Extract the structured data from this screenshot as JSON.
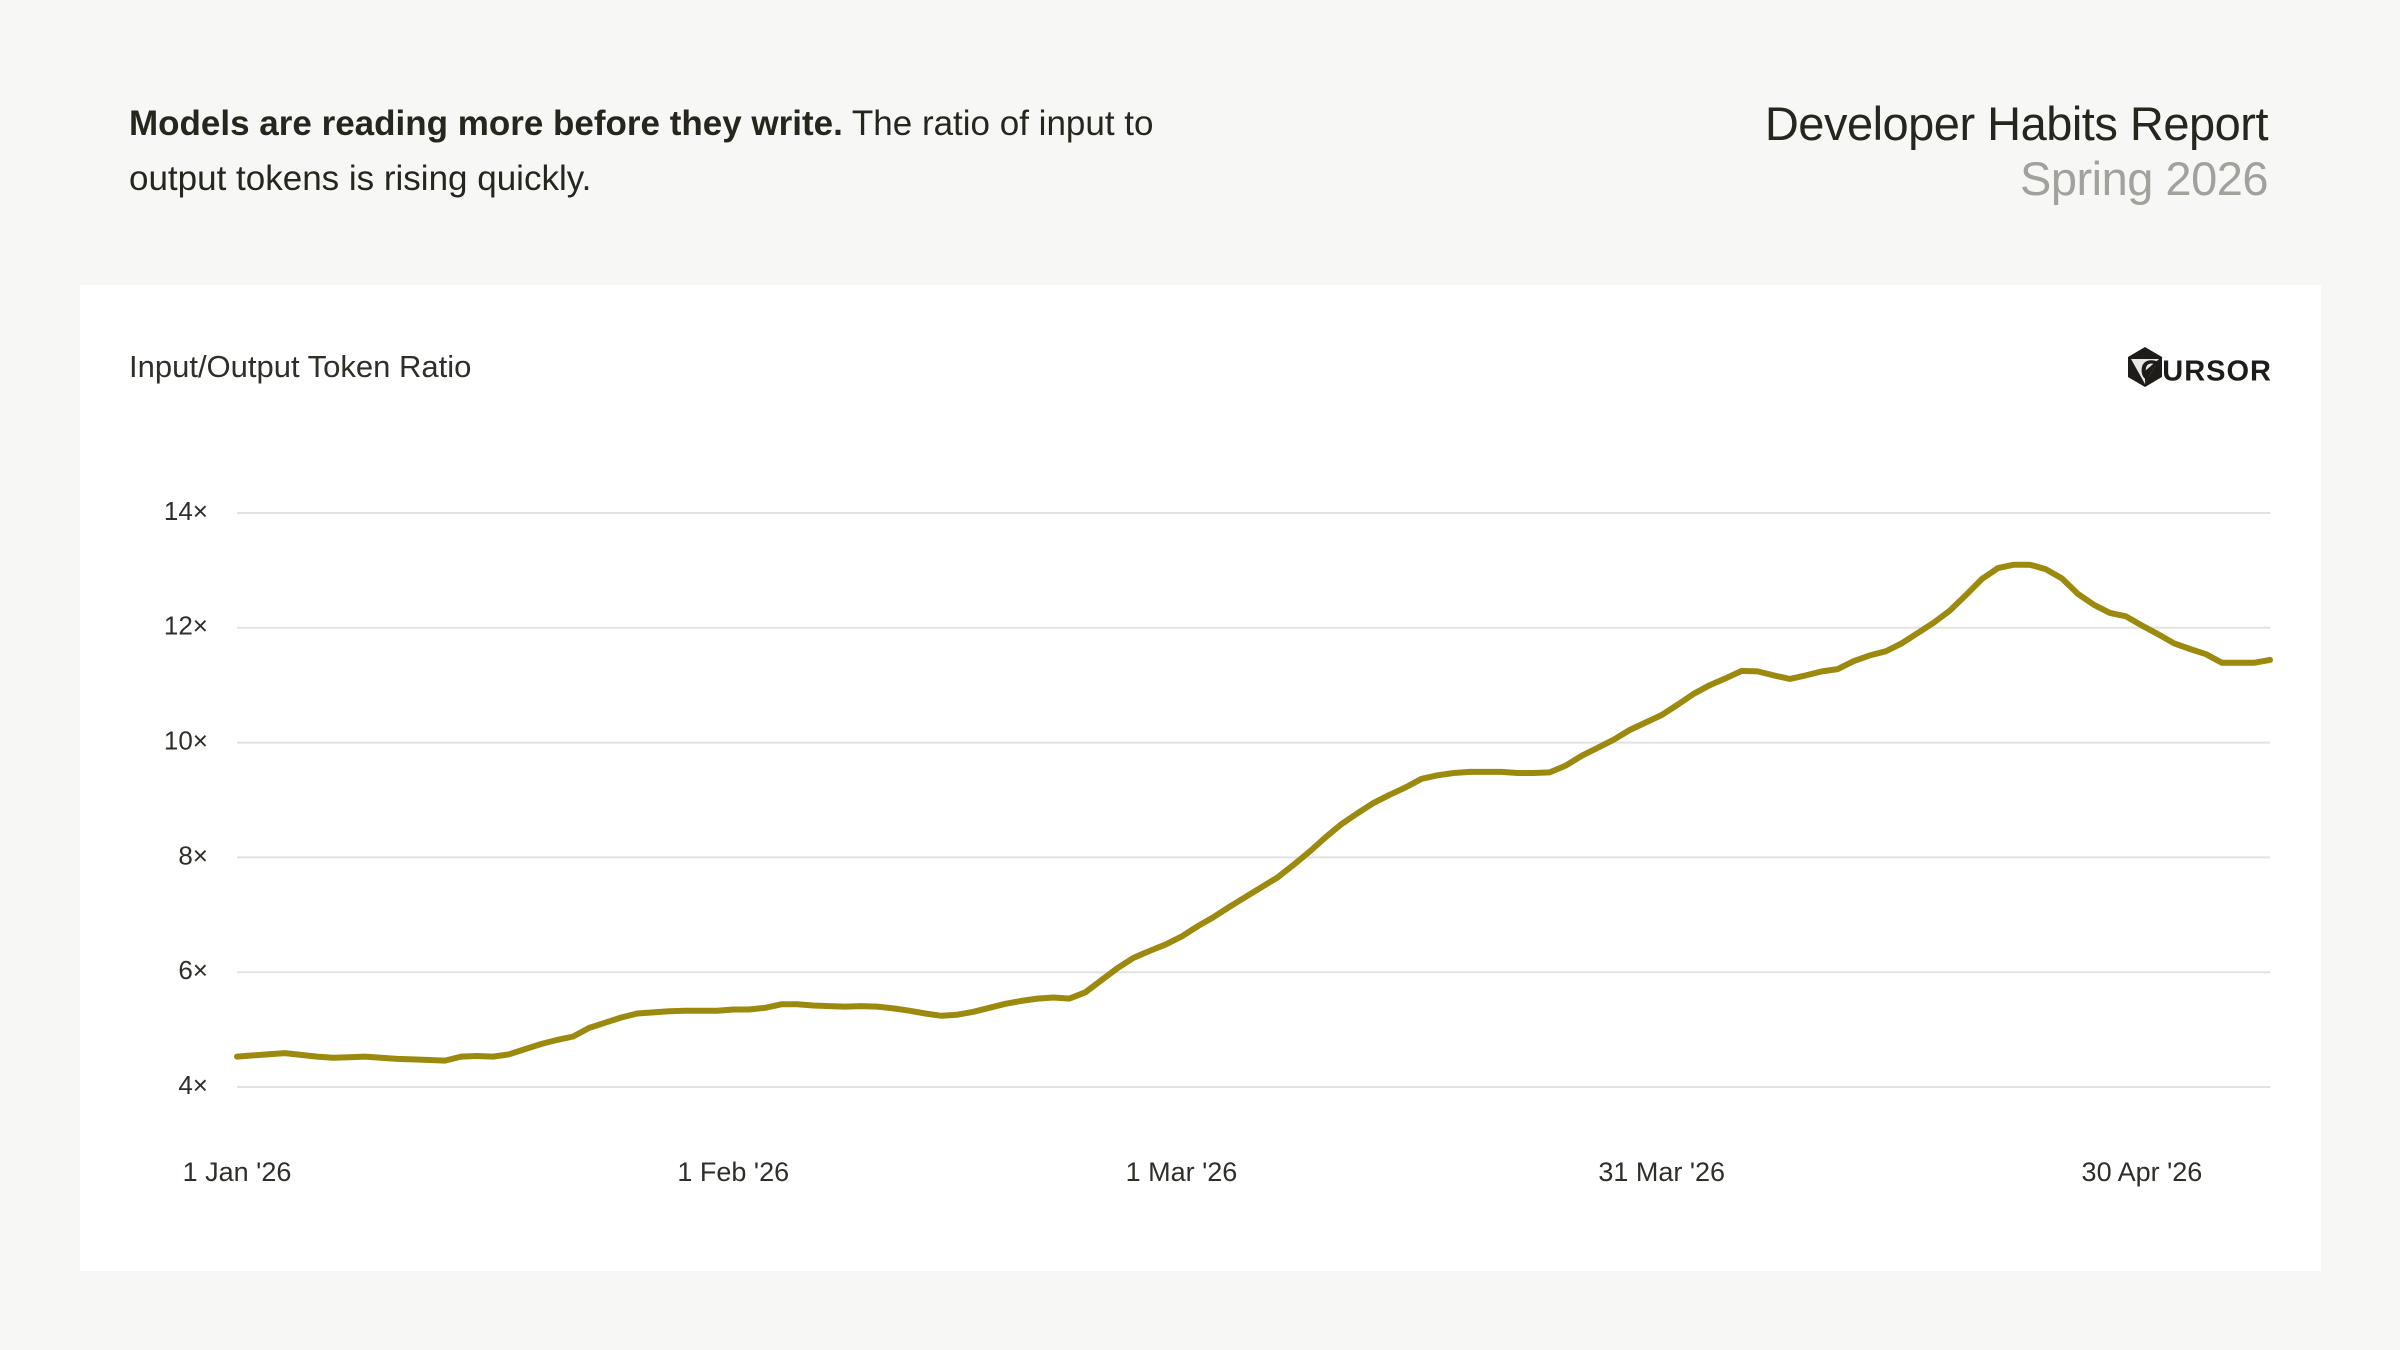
{
  "headline": {
    "lead": "Models are reading more before they write.",
    "text": "The ratio of input to output tokens is rising quickly."
  },
  "report": {
    "title": "Developer Habits Report",
    "subtitle": "Spring 2026"
  },
  "brand": "CURSOR",
  "chart_data": {
    "type": "line",
    "title": "Input/Output Token Ratio",
    "categories": [
      "1 Jan '26",
      null,
      null,
      null,
      null,
      null,
      null,
      null,
      null,
      null,
      null,
      null,
      null,
      null,
      null,
      null,
      null,
      null,
      null,
      null,
      null,
      null,
      null,
      null,
      null,
      null,
      null,
      null,
      null,
      null,
      null,
      "1 Feb '26",
      null,
      null,
      null,
      null,
      null,
      null,
      null,
      null,
      null,
      null,
      null,
      null,
      null,
      null,
      null,
      null,
      null,
      null,
      null,
      null,
      null,
      null,
      null,
      null,
      null,
      null,
      null,
      "1 Mar '26",
      null,
      null,
      null,
      null,
      null,
      null,
      null,
      null,
      null,
      null,
      null,
      null,
      null,
      null,
      null,
      null,
      null,
      null,
      null,
      null,
      null,
      null,
      null,
      null,
      null,
      null,
      null,
      null,
      null,
      "31 Mar '26",
      null,
      null,
      null,
      null,
      null,
      null,
      null,
      null,
      null,
      null,
      null,
      null,
      null,
      null,
      null,
      null,
      null,
      null,
      null,
      null,
      null,
      null,
      null,
      null,
      null,
      null,
      null,
      null,
      null,
      "30 Apr '26",
      null,
      null,
      null,
      null,
      null,
      null,
      null,
      null
    ],
    "series": [
      {
        "name": "Input/Output Token Ratio",
        "color": "#9c8a0e",
        "values": [
          4.53,
          4.55,
          4.57,
          4.59,
          4.56,
          4.53,
          4.51,
          4.52,
          4.53,
          4.51,
          4.49,
          4.48,
          4.47,
          4.46,
          4.53,
          4.54,
          4.53,
          4.57,
          4.66,
          4.75,
          4.82,
          4.88,
          5.03,
          5.12,
          5.21,
          5.28,
          5.3,
          5.32,
          5.33,
          5.33,
          5.33,
          5.35,
          5.35,
          5.38,
          5.44,
          5.44,
          5.42,
          5.41,
          5.4,
          5.41,
          5.4,
          5.37,
          5.33,
          5.28,
          5.24,
          5.26,
          5.31,
          5.38,
          5.45,
          5.5,
          5.54,
          5.56,
          5.54,
          5.65,
          5.86,
          6.07,
          6.25,
          6.37,
          6.48,
          6.62,
          6.8,
          6.96,
          7.14,
          7.31,
          7.48,
          7.65,
          7.87,
          8.1,
          8.35,
          8.58,
          8.77,
          8.95,
          9.09,
          9.22,
          9.37,
          9.43,
          9.47,
          9.49,
          9.49,
          9.49,
          9.47,
          9.47,
          9.48,
          9.6,
          9.77,
          9.91,
          10.05,
          10.22,
          10.35,
          10.48,
          10.66,
          10.85,
          11.0,
          11.12,
          11.25,
          11.24,
          11.17,
          11.11,
          11.17,
          11.24,
          11.28,
          11.42,
          11.52,
          11.59,
          11.73,
          11.91,
          12.09,
          12.3,
          12.57,
          12.85,
          13.04,
          13.1,
          13.1,
          13.02,
          12.86,
          12.59,
          12.4,
          12.26,
          12.2,
          12.04,
          11.89,
          11.73,
          11.63,
          11.54,
          11.39,
          11.39,
          11.39,
          11.44
        ]
      }
    ],
    "ylim": [
      4,
      14
    ],
    "yticks": [
      {
        "value": 4,
        "label": "4×"
      },
      {
        "value": 6,
        "label": "6×"
      },
      {
        "value": 8,
        "label": "8×"
      },
      {
        "value": 10,
        "label": "10×"
      },
      {
        "value": 12,
        "label": "12×"
      },
      {
        "value": 14,
        "label": "14×"
      }
    ],
    "grid": true
  }
}
